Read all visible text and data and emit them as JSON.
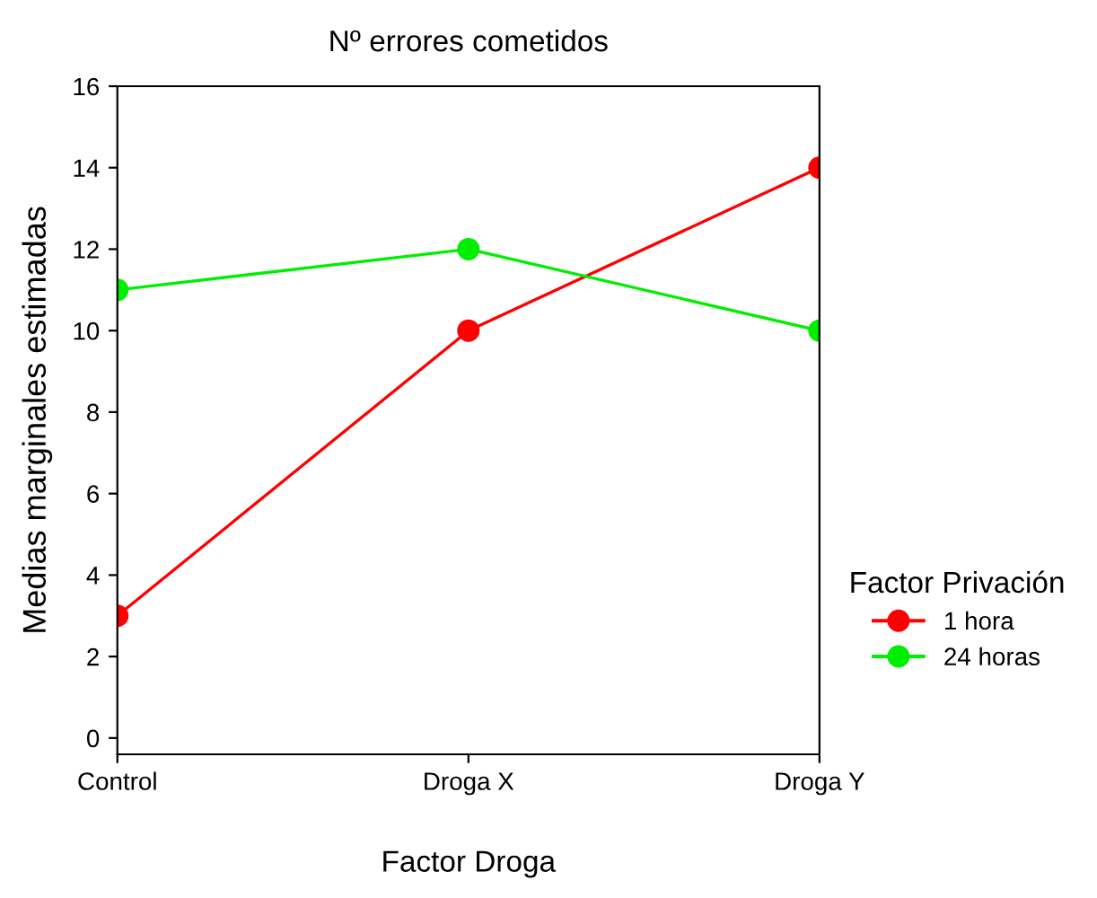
{
  "chart_data": {
    "type": "line",
    "title": "Nº errores cometidos",
    "xlabel": "Factor Droga",
    "ylabel": "Medias marginales estimadas",
    "legend_title": "Factor Privación",
    "categories": [
      "Control",
      "Droga X",
      "Droga Y"
    ],
    "series": [
      {
        "name": "1 hora",
        "color": "#ff0000",
        "values": [
          3,
          10,
          14
        ]
      },
      {
        "name": "24 horas",
        "color": "#00ee00",
        "values": [
          11,
          12,
          10
        ]
      }
    ],
    "ylim": [
      -0.4,
      16
    ],
    "yticks": [
      0,
      2,
      4,
      6,
      8,
      10,
      12,
      14,
      16
    ],
    "grid": false,
    "legend": "right",
    "marker": "circle",
    "line_style": "solid"
  }
}
